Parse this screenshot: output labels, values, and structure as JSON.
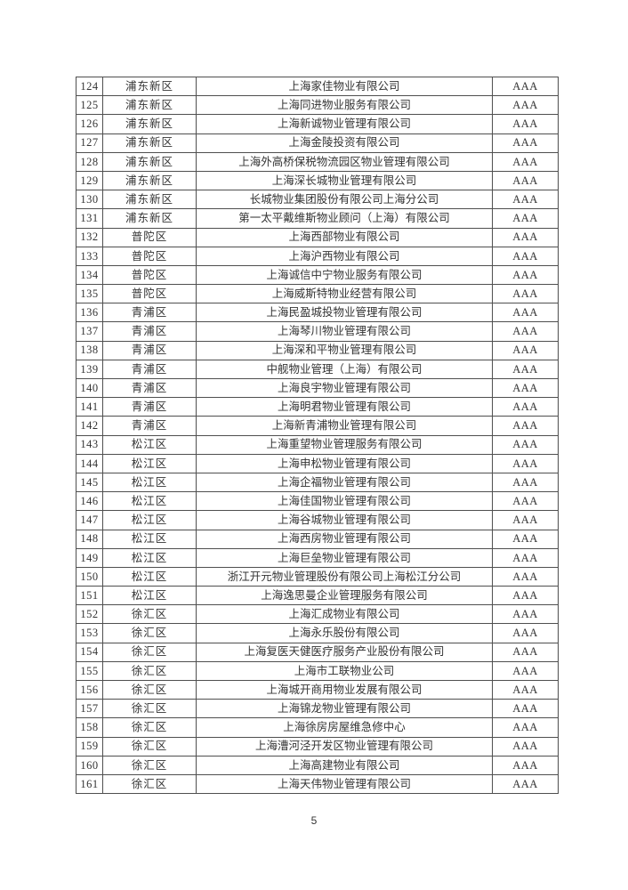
{
  "page": {
    "page_number": "5"
  },
  "table": {
    "rating_label": "AAA",
    "rows": [
      {
        "no": "124",
        "district": "浦东新区",
        "company": "上海家佳物业有限公司",
        "rating": "AAA"
      },
      {
        "no": "125",
        "district": "浦东新区",
        "company": "上海同进物业服务有限公司",
        "rating": "AAA"
      },
      {
        "no": "126",
        "district": "浦东新区",
        "company": "上海新诚物业管理有限公司",
        "rating": "AAA"
      },
      {
        "no": "127",
        "district": "浦东新区",
        "company": "上海金陵投资有限公司",
        "rating": "AAA"
      },
      {
        "no": "128",
        "district": "浦东新区",
        "company": "上海外高桥保税物流园区物业管理有限公司",
        "rating": "AAA"
      },
      {
        "no": "129",
        "district": "浦东新区",
        "company": "上海深长城物业管理有限公司",
        "rating": "AAA"
      },
      {
        "no": "130",
        "district": "浦东新区",
        "company": "长城物业集团股份有限公司上海分公司",
        "rating": "AAA"
      },
      {
        "no": "131",
        "district": "浦东新区",
        "company": "第一太平戴维斯物业顾问（上海）有限公司",
        "rating": "AAA"
      },
      {
        "no": "132",
        "district": "普陀区",
        "company": "上海西部物业有限公司",
        "rating": "AAA"
      },
      {
        "no": "133",
        "district": "普陀区",
        "company": "上海沪西物业有限公司",
        "rating": "AAA"
      },
      {
        "no": "134",
        "district": "普陀区",
        "company": "上海诚信中宁物业服务有限公司",
        "rating": "AAA"
      },
      {
        "no": "135",
        "district": "普陀区",
        "company": "上海威斯特物业经营有限公司",
        "rating": "AAA"
      },
      {
        "no": "136",
        "district": "青浦区",
        "company": "上海民盈城投物业管理有限公司",
        "rating": "AAA"
      },
      {
        "no": "137",
        "district": "青浦区",
        "company": "上海琴川物业管理有限公司",
        "rating": "AAA"
      },
      {
        "no": "138",
        "district": "青浦区",
        "company": "上海深和平物业管理有限公司",
        "rating": "AAA"
      },
      {
        "no": "139",
        "district": "青浦区",
        "company": "中舰物业管理（上海）有限公司",
        "rating": "AAA"
      },
      {
        "no": "140",
        "district": "青浦区",
        "company": "上海良宇物业管理有限公司",
        "rating": "AAA"
      },
      {
        "no": "141",
        "district": "青浦区",
        "company": "上海明君物业管理有限公司",
        "rating": "AAA"
      },
      {
        "no": "142",
        "district": "青浦区",
        "company": "上海新青浦物业管理有限公司",
        "rating": "AAA"
      },
      {
        "no": "143",
        "district": "松江区",
        "company": "上海重望物业管理服务有限公司",
        "rating": "AAA"
      },
      {
        "no": "144",
        "district": "松江区",
        "company": "上海申松物业管理有限公司",
        "rating": "AAA"
      },
      {
        "no": "145",
        "district": "松江区",
        "company": "上海企福物业管理有限公司",
        "rating": "AAA"
      },
      {
        "no": "146",
        "district": "松江区",
        "company": "上海佳国物业管理有限公司",
        "rating": "AAA"
      },
      {
        "no": "147",
        "district": "松江区",
        "company": "上海谷城物业管理有限公司",
        "rating": "AAA"
      },
      {
        "no": "148",
        "district": "松江区",
        "company": "上海西房物业管理有限公司",
        "rating": "AAA"
      },
      {
        "no": "149",
        "district": "松江区",
        "company": "上海巨垒物业管理有限公司",
        "rating": "AAA"
      },
      {
        "no": "150",
        "district": "松江区",
        "company": "浙江开元物业管理股份有限公司上海松江分公司",
        "rating": "AAA"
      },
      {
        "no": "151",
        "district": "松江区",
        "company": "上海逸思曼企业管理服务有限公司",
        "rating": "AAA"
      },
      {
        "no": "152",
        "district": "徐汇区",
        "company": "上海汇成物业有限公司",
        "rating": "AAA"
      },
      {
        "no": "153",
        "district": "徐汇区",
        "company": "上海永乐股份有限公司",
        "rating": "AAA"
      },
      {
        "no": "154",
        "district": "徐汇区",
        "company": "上海复医天健医疗服务产业股份有限公司",
        "rating": "AAA"
      },
      {
        "no": "155",
        "district": "徐汇区",
        "company": "上海市工联物业公司",
        "rating": "AAA"
      },
      {
        "no": "156",
        "district": "徐汇区",
        "company": "上海城开商用物业发展有限公司",
        "rating": "AAA"
      },
      {
        "no": "157",
        "district": "徐汇区",
        "company": "上海锦龙物业管理有限公司",
        "rating": "AAA"
      },
      {
        "no": "158",
        "district": "徐汇区",
        "company": "上海徐房房屋维急修中心",
        "rating": "AAA"
      },
      {
        "no": "159",
        "district": "徐汇区",
        "company": "上海漕河泾开发区物业管理有限公司",
        "rating": "AAA"
      },
      {
        "no": "160",
        "district": "徐汇区",
        "company": "上海高建物业有限公司",
        "rating": "AAA"
      },
      {
        "no": "161",
        "district": "徐汇区",
        "company": "上海天伟物业管理有限公司",
        "rating": "AAA"
      }
    ]
  }
}
